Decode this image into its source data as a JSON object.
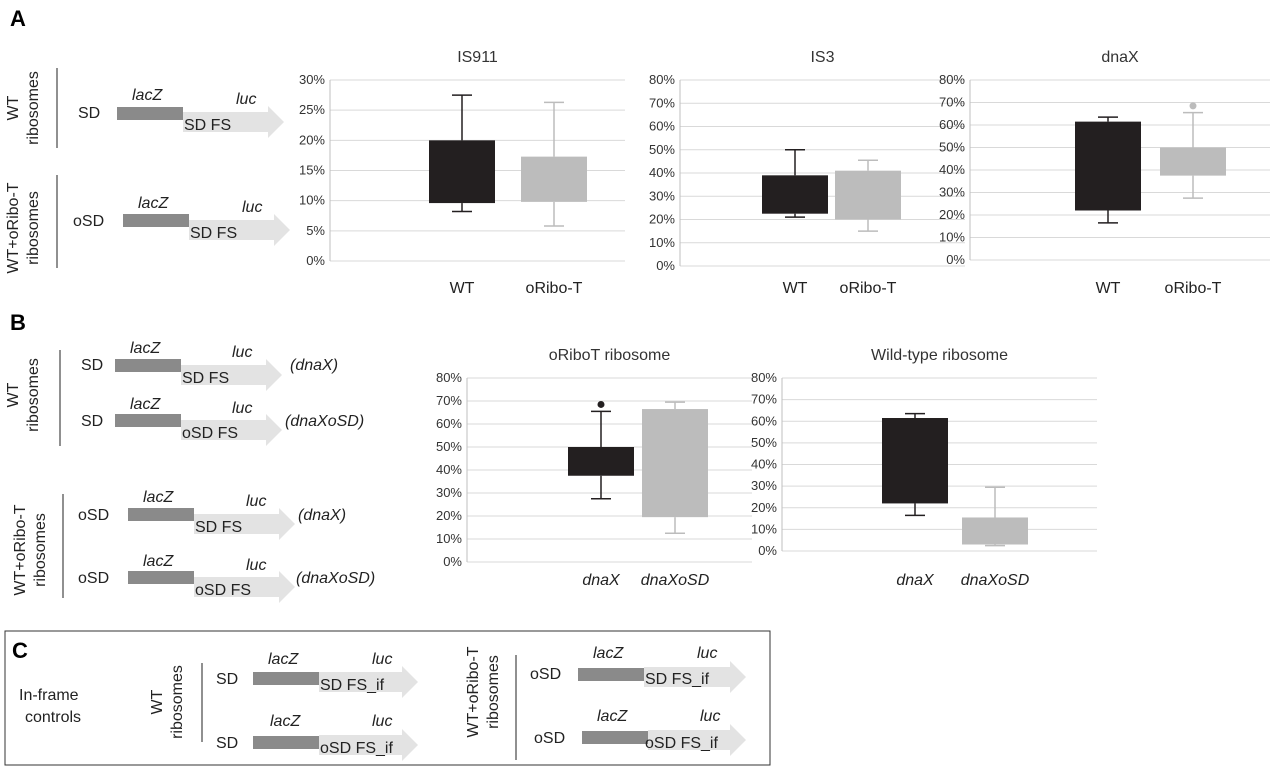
{
  "panels": {
    "A": {
      "letter": "A",
      "groups": [
        {
          "label_line1": "WT",
          "label_line2": "ribosomes",
          "constructs": [
            {
              "sd": "SD",
              "gene1": "lacZ",
              "gene2": "luc",
              "fs": "SD FS",
              "name": ""
            }
          ]
        },
        {
          "label_line1": "WT+oRibo-T",
          "label_line2": "ribosomes",
          "constructs": [
            {
              "sd": "oSD",
              "gene1": "lacZ",
              "gene2": "luc",
              "fs": "SD FS",
              "name": ""
            }
          ]
        }
      ]
    },
    "B": {
      "letter": "B",
      "groups": [
        {
          "label_line1": "WT",
          "label_line2": "ribosomes",
          "constructs": [
            {
              "sd": "SD",
              "gene1": "lacZ",
              "gene2": "luc",
              "fs": "SD FS",
              "name": "(dnaX)"
            },
            {
              "sd": "SD",
              "gene1": "lacZ",
              "gene2": "luc",
              "fs": "oSD FS",
              "name": "(dnaXoSD)"
            }
          ]
        },
        {
          "label_line1": "WT+oRibo-T",
          "label_line2": "ribosomes",
          "constructs": [
            {
              "sd": "oSD",
              "gene1": "lacZ",
              "gene2": "luc",
              "fs": "SD FS",
              "name": "(dnaX)"
            },
            {
              "sd": "oSD",
              "gene1": "lacZ",
              "gene2": "luc",
              "fs": "oSD FS",
              "name": "(dnaXoSD)"
            }
          ]
        }
      ]
    },
    "C": {
      "letter": "C",
      "caption_line1": "In-frame",
      "caption_line2": "controls",
      "groups": [
        {
          "label_line1": "WT",
          "label_line2": "ribosomes",
          "constructs": [
            {
              "sd": "SD",
              "gene1": "lacZ",
              "gene2": "luc",
              "fs": "SD FS_if"
            },
            {
              "sd": "SD",
              "gene1": "lacZ",
              "gene2": "luc",
              "fs": "oSD FS_if"
            }
          ]
        },
        {
          "label_line1": "WT+oRibo-T",
          "label_line2": "ribosomes",
          "constructs": [
            {
              "sd": "oSD",
              "gene1": "lacZ",
              "gene2": "luc",
              "fs": "SD FS_if"
            },
            {
              "sd": "oSD",
              "gene1": "lacZ",
              "gene2": "luc",
              "fs": "oSD FS_if"
            }
          ]
        }
      ]
    }
  },
  "colors": {
    "dark_box": "#231f20",
    "light_box": "#bcbcbc",
    "lacz_bar": "#8a8a8a",
    "arrow": "#e3e3e3",
    "grid": "#d9d9d9"
  },
  "chart_data": [
    {
      "id": "is911",
      "type": "box",
      "title": "IS911",
      "ylim": [
        0,
        30
      ],
      "tick_step": 5,
      "unit": "%",
      "italic_categories": false,
      "categories": [
        "WT",
        "oRibo-T"
      ],
      "series": [
        {
          "whisker_low": 8.2,
          "q1": 9.6,
          "q3": 20.0,
          "whisker_high": 27.5,
          "outliers": []
        },
        {
          "whisker_low": 5.8,
          "q1": 9.8,
          "q3": 17.3,
          "whisker_high": 26.3,
          "outliers": []
        }
      ]
    },
    {
      "id": "is3",
      "type": "box",
      "title": "IS3",
      "ylim": [
        0,
        80
      ],
      "tick_step": 10,
      "unit": "%",
      "italic_categories": false,
      "categories": [
        "WT",
        "oRibo-T"
      ],
      "series": [
        {
          "whisker_low": 21,
          "q1": 22.5,
          "q3": 39,
          "whisker_high": 50,
          "outliers": []
        },
        {
          "whisker_low": 15,
          "q1": 20,
          "q3": 41,
          "whisker_high": 45.5,
          "outliers": []
        }
      ]
    },
    {
      "id": "dnax",
      "type": "box",
      "title": "dnaX",
      "ylim": [
        0,
        80
      ],
      "tick_step": 10,
      "unit": "%",
      "italic_categories": false,
      "categories": [
        "WT",
        "oRibo-T"
      ],
      "series": [
        {
          "whisker_low": 16.5,
          "q1": 22,
          "q3": 61.5,
          "whisker_high": 63.5,
          "outliers": []
        },
        {
          "whisker_low": 27.5,
          "q1": 37.5,
          "q3": 50,
          "whisker_high": 65.5,
          "outliers": [
            68.5
          ]
        }
      ]
    },
    {
      "id": "oribot",
      "type": "box",
      "title": "oRiboT ribosome",
      "ylim": [
        0,
        80
      ],
      "tick_step": 10,
      "unit": "%",
      "italic_categories": true,
      "categories": [
        "dnaX",
        "dnaXoSD"
      ],
      "series": [
        {
          "whisker_low": 27.5,
          "q1": 37.5,
          "q3": 50,
          "whisker_high": 65.5,
          "outliers": [
            68.5
          ]
        },
        {
          "whisker_low": 12.5,
          "q1": 19.5,
          "q3": 66.5,
          "whisker_high": 69.5,
          "outliers": []
        }
      ]
    },
    {
      "id": "wildtype",
      "type": "box",
      "title": "Wild-type ribosome",
      "ylim": [
        0,
        80
      ],
      "tick_step": 10,
      "unit": "%",
      "italic_categories": true,
      "categories": [
        "dnaX",
        "dnaXoSD"
      ],
      "series": [
        {
          "whisker_low": 16.5,
          "q1": 22,
          "q3": 61.5,
          "whisker_high": 63.5,
          "outliers": []
        },
        {
          "whisker_low": 2.5,
          "q1": 3,
          "q3": 15.5,
          "whisker_high": 29.5,
          "outliers": []
        }
      ]
    }
  ]
}
